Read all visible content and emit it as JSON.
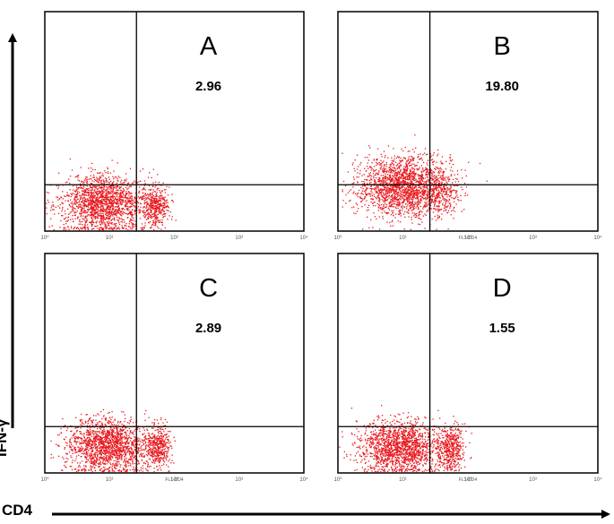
{
  "axes": {
    "x_title": "CD4",
    "y_title": "IFN-γ"
  },
  "colors": {
    "events": "#e8191f",
    "frame": "#000000",
    "background": "#ffffff"
  },
  "chart_data": [
    {
      "type": "scatter",
      "panel": "A",
      "value": "2.96",
      "x_scale": "log",
      "y_scale": "log",
      "xlim": [
        1,
        10000
      ],
      "ylim": [
        1,
        10000
      ],
      "x_gate": 26,
      "y_gate": 7,
      "x_tick_labels": [
        "10⁰",
        "10¹",
        "10²",
        "10³",
        "10⁴"
      ],
      "x_axis_label": "",
      "populations": [
        {
          "center": [
            8,
            3.3
          ],
          "spread": [
            0.32,
            0.26
          ],
          "count": 1700
        },
        {
          "center": [
            50,
            3.0
          ],
          "spread": [
            0.1,
            0.2
          ],
          "count": 420
        }
      ]
    },
    {
      "type": "scatter",
      "panel": "B",
      "value": "19.80",
      "x_scale": "log",
      "y_scale": "log",
      "xlim": [
        1,
        10000
      ],
      "ylim": [
        1,
        10000
      ],
      "x_gate": 26,
      "y_gate": 7,
      "x_tick_labels": [
        "10⁰",
        "10¹",
        "10²",
        "10³",
        "10⁴"
      ],
      "x_axis_label": "FL1-CD4",
      "populations": [
        {
          "center": [
            10,
            6.5
          ],
          "spread": [
            0.35,
            0.28
          ],
          "count": 1900
        },
        {
          "center": [
            35,
            5.5
          ],
          "spread": [
            0.15,
            0.2
          ],
          "count": 300
        }
      ]
    },
    {
      "type": "scatter",
      "panel": "C",
      "value": "2.89",
      "x_scale": "log",
      "y_scale": "log",
      "xlim": [
        1,
        10000
      ],
      "ylim": [
        1,
        10000
      ],
      "x_gate": 26,
      "y_gate": 7,
      "x_tick_labels": [
        "10⁰",
        "10¹",
        "10²",
        "10³",
        "10⁴"
      ],
      "x_axis_label": "FL1-CD4",
      "populations": [
        {
          "center": [
            9,
            3.2
          ],
          "spread": [
            0.32,
            0.25
          ],
          "count": 1700
        },
        {
          "center": [
            55,
            3.0
          ],
          "spread": [
            0.1,
            0.2
          ],
          "count": 420
        }
      ]
    },
    {
      "type": "scatter",
      "panel": "D",
      "value": "1.55",
      "x_scale": "log",
      "y_scale": "log",
      "xlim": [
        1,
        10000
      ],
      "ylim": [
        1,
        10000
      ],
      "x_gate": 26,
      "y_gate": 7,
      "x_tick_labels": [
        "10⁰",
        "10¹",
        "10²",
        "10³",
        "10⁴"
      ],
      "x_axis_label": "FL1-CD4",
      "populations": [
        {
          "center": [
            9,
            3.0
          ],
          "spread": [
            0.32,
            0.24
          ],
          "count": 1700
        },
        {
          "center": [
            55,
            2.9
          ],
          "spread": [
            0.1,
            0.2
          ],
          "count": 420
        }
      ]
    }
  ]
}
